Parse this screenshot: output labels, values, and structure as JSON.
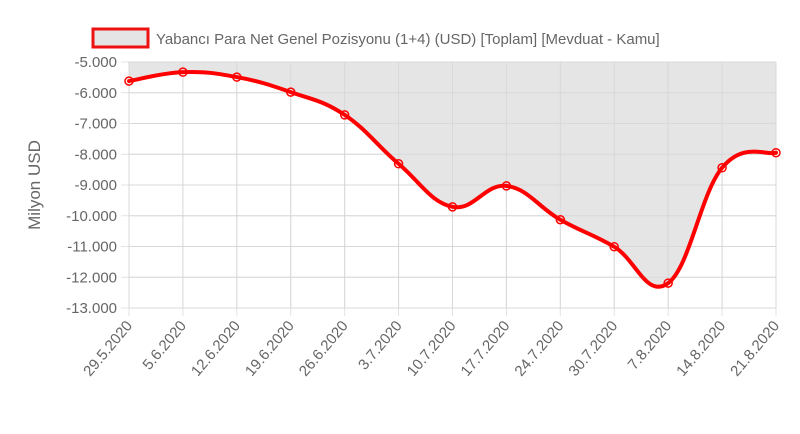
{
  "chart_data": {
    "type": "line",
    "title": "",
    "xlabel": "",
    "ylabel": "Milyon USD",
    "ylim": [
      -13000,
      -5000
    ],
    "yticks": [
      "-5.000",
      "-6.000",
      "-7.000",
      "-8.000",
      "-9.000",
      "-10.000",
      "-11.000",
      "-12.000",
      "-13.000"
    ],
    "ytick_values": [
      -5000,
      -6000,
      -7000,
      -8000,
      -9000,
      -10000,
      -11000,
      -12000,
      -13000
    ],
    "categories": [
      "29.5.2020",
      "5.6.2020",
      "12.6.2020",
      "19.6.2020",
      "26.6.2020",
      "3.7.2020",
      "10.7.2020",
      "17.7.2020",
      "24.7.2020",
      "30.7.2020",
      "7.8.2020",
      "14.8.2020",
      "21.8.2020"
    ],
    "series": [
      {
        "name": "Yabancı Para Net Genel Pozisyonu (1+4) (USD) [Toplam] [Mevduat - Kamu]",
        "values": [
          -5620,
          -5330,
          -5490,
          -5980,
          -6720,
          -8310,
          -9710,
          -9030,
          -10130,
          -11010,
          -12190,
          -8440,
          -7950
        ],
        "line_color": "#ff0000",
        "fill_color": "#e5e5e5",
        "fill": "to-top"
      }
    ],
    "grid": true,
    "legend_position": "top"
  },
  "legend": {
    "label": "Yabancı Para Net Genel Pozisyonu (1+4) (USD) [Toplam] [Mevduat - Kamu]"
  }
}
